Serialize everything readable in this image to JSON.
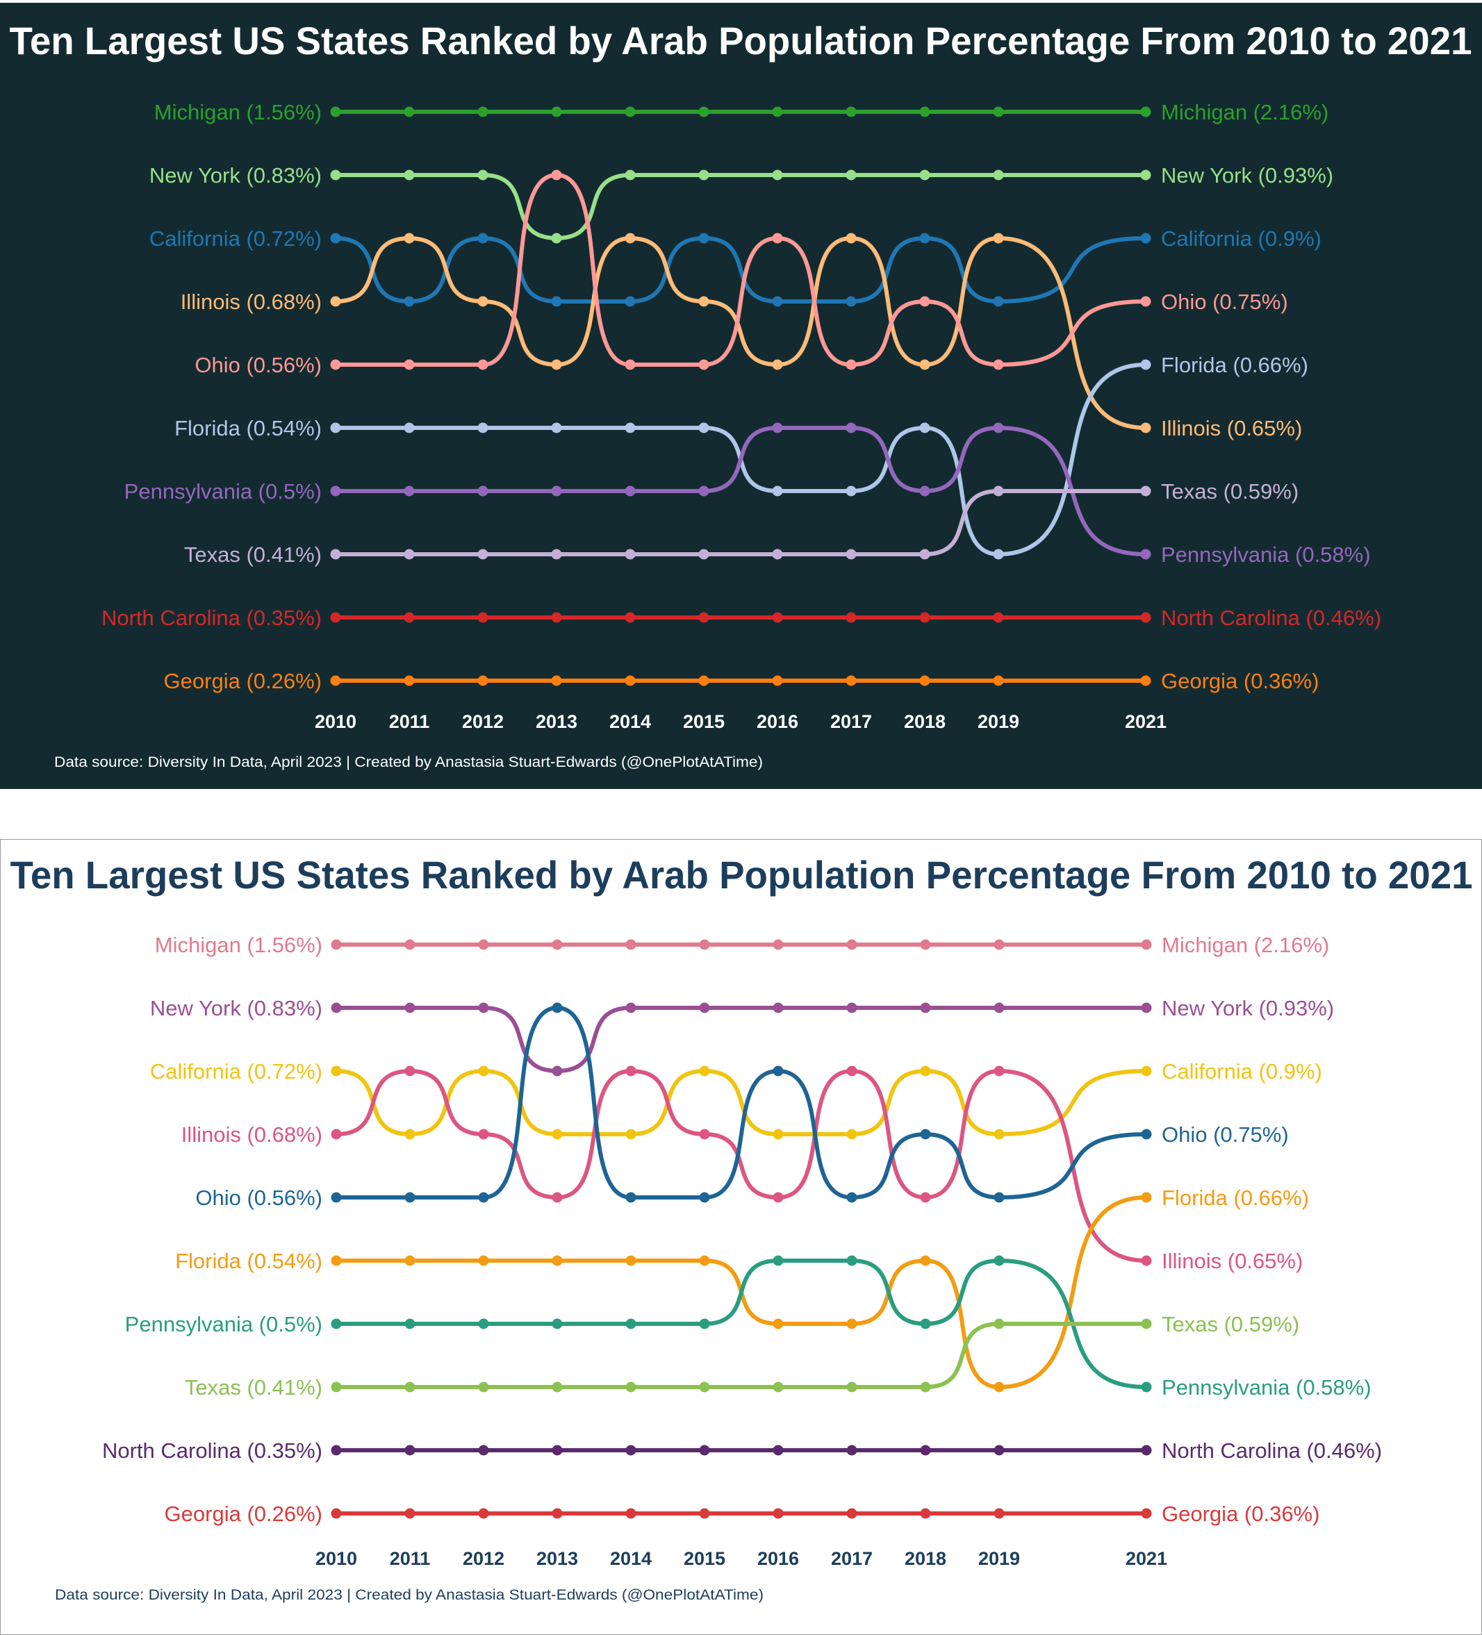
{
  "chart_data": [
    {
      "type": "line",
      "subtype": "bump",
      "theme": "dark",
      "title": "Ten Largest US States Ranked by Arab Population Percentage From 2010 to 2021",
      "footer": "Data source: Diversity In Data, April 2023 | Created by Anastasia Stuart-Edwards (@OnePlotAtATime)",
      "x": [
        2010,
        2011,
        2012,
        2013,
        2014,
        2015,
        2016,
        2017,
        2018,
        2019,
        2021
      ],
      "x_tick_labels": [
        "2010",
        "2011",
        "2012",
        "2013",
        "2014",
        "2015",
        "2016",
        "2017",
        "2018",
        "2019",
        "2021"
      ],
      "y_axis": "rank (1 = top)",
      "ylim": [
        1,
        10
      ],
      "colors": {
        "background": "#132b30",
        "title": "#ffffff",
        "axis_text": "#ffffff",
        "footer": "#ffffff"
      },
      "series": [
        {
          "name": "Michigan",
          "start_label": "Michigan (1.56%)",
          "end_label": "Michigan (2.16%)",
          "pct_2010": 1.56,
          "pct_2021": 2.16,
          "color": "#2ca02c",
          "ranks": [
            1,
            1,
            1,
            1,
            1,
            1,
            1,
            1,
            1,
            1,
            1
          ]
        },
        {
          "name": "New York",
          "start_label": "New York (0.83%)",
          "end_label": "New York (0.93%)",
          "pct_2010": 0.83,
          "pct_2021": 0.93,
          "color": "#98df8a",
          "ranks": [
            2,
            2,
            2,
            3,
            2,
            2,
            2,
            2,
            2,
            2,
            2
          ]
        },
        {
          "name": "California",
          "start_label": "California (0.72%)",
          "end_label": "California (0.9%)",
          "pct_2010": 0.72,
          "pct_2021": 0.9,
          "color": "#1f77b4",
          "ranks": [
            3,
            4,
            3,
            4,
            4,
            3,
            4,
            4,
            3,
            4,
            3
          ]
        },
        {
          "name": "Illinois",
          "start_label": "Illinois (0.68%)",
          "end_label": "Illinois (0.65%)",
          "pct_2010": 0.68,
          "pct_2021": 0.65,
          "color": "#ffbb78",
          "ranks": [
            4,
            3,
            4,
            5,
            3,
            4,
            5,
            3,
            5,
            3,
            6
          ]
        },
        {
          "name": "Ohio",
          "start_label": "Ohio (0.56%)",
          "end_label": "Ohio (0.75%)",
          "pct_2010": 0.56,
          "pct_2021": 0.75,
          "color": "#ff9896",
          "ranks": [
            5,
            5,
            5,
            2,
            5,
            5,
            3,
            5,
            4,
            5,
            4
          ]
        },
        {
          "name": "Florida",
          "start_label": "Florida (0.54%)",
          "end_label": "Florida (0.66%)",
          "pct_2010": 0.54,
          "pct_2021": 0.66,
          "color": "#aec7e8",
          "ranks": [
            6,
            6,
            6,
            6,
            6,
            6,
            7,
            7,
            6,
            8,
            5
          ]
        },
        {
          "name": "Pennsylvania",
          "start_label": "Pennsylvania (0.5%)",
          "end_label": "Pennsylvania (0.58%)",
          "pct_2010": 0.5,
          "pct_2021": 0.58,
          "color": "#9467bd",
          "ranks": [
            7,
            7,
            7,
            7,
            7,
            7,
            6,
            6,
            7,
            6,
            8
          ]
        },
        {
          "name": "Texas",
          "start_label": "Texas (0.41%)",
          "end_label": "Texas (0.59%)",
          "pct_2010": 0.41,
          "pct_2021": 0.59,
          "color": "#c5b0d5",
          "ranks": [
            8,
            8,
            8,
            8,
            8,
            8,
            8,
            8,
            8,
            7,
            7
          ]
        },
        {
          "name": "North Carolina",
          "start_label": "North Carolina (0.35%)",
          "end_label": "North Carolina (0.46%)",
          "pct_2010": 0.35,
          "pct_2021": 0.46,
          "color": "#d62728",
          "ranks": [
            9,
            9,
            9,
            9,
            9,
            9,
            9,
            9,
            9,
            9,
            9
          ]
        },
        {
          "name": "Georgia",
          "start_label": "Georgia (0.26%)",
          "end_label": "Georgia (0.36%)",
          "pct_2010": 0.26,
          "pct_2021": 0.36,
          "color": "#ff7f0e",
          "ranks": [
            10,
            10,
            10,
            10,
            10,
            10,
            10,
            10,
            10,
            10,
            10
          ]
        }
      ]
    },
    {
      "type": "line",
      "subtype": "bump",
      "theme": "light",
      "title": "Ten Largest US States Ranked by Arab Population Percentage From 2010 to 2021",
      "footer": "Data source: Diversity In Data, April 2023 | Created by Anastasia Stuart-Edwards (@OnePlotAtATime)",
      "x": [
        2010,
        2011,
        2012,
        2013,
        2014,
        2015,
        2016,
        2017,
        2018,
        2019,
        2021
      ],
      "x_tick_labels": [
        "2010",
        "2011",
        "2012",
        "2013",
        "2014",
        "2015",
        "2016",
        "2017",
        "2018",
        "2019",
        "2021"
      ],
      "y_axis": "rank (1 = top)",
      "ylim": [
        1,
        10
      ],
      "colors": {
        "background": "#ffffff",
        "title": "#1d3d5c",
        "axis_text": "#1d3d5c",
        "footer": "#1d3d5c"
      },
      "series": [
        {
          "name": "Michigan",
          "start_label": "Michigan (1.56%)",
          "end_label": "Michigan (2.16%)",
          "pct_2010": 1.56,
          "pct_2021": 2.16,
          "color": "#e27a8d",
          "ranks": [
            1,
            1,
            1,
            1,
            1,
            1,
            1,
            1,
            1,
            1,
            1
          ]
        },
        {
          "name": "New York",
          "start_label": "New York (0.83%)",
          "end_label": "New York (0.93%)",
          "pct_2010": 0.83,
          "pct_2021": 0.93,
          "color": "#9a4f95",
          "ranks": [
            2,
            2,
            2,
            3,
            2,
            2,
            2,
            2,
            2,
            2,
            2
          ]
        },
        {
          "name": "California",
          "start_label": "California (0.72%)",
          "end_label": "California (0.9%)",
          "pct_2010": 0.72,
          "pct_2021": 0.9,
          "color": "#f1c40f",
          "ranks": [
            3,
            4,
            3,
            4,
            4,
            3,
            4,
            4,
            3,
            4,
            3
          ]
        },
        {
          "name": "Illinois",
          "start_label": "Illinois (0.68%)",
          "end_label": "Illinois (0.65%)",
          "pct_2010": 0.68,
          "pct_2021": 0.65,
          "color": "#dc5680",
          "ranks": [
            4,
            3,
            4,
            5,
            3,
            4,
            5,
            3,
            5,
            3,
            6
          ]
        },
        {
          "name": "Ohio",
          "start_label": "Ohio (0.56%)",
          "end_label": "Ohio (0.75%)",
          "pct_2010": 0.56,
          "pct_2021": 0.75,
          "color": "#1e6494",
          "ranks": [
            5,
            5,
            5,
            2,
            5,
            5,
            3,
            5,
            4,
            5,
            4
          ]
        },
        {
          "name": "Florida",
          "start_label": "Florida (0.54%)",
          "end_label": "Florida (0.66%)",
          "pct_2010": 0.54,
          "pct_2021": 0.66,
          "color": "#f39c12",
          "ranks": [
            6,
            6,
            6,
            6,
            6,
            6,
            7,
            7,
            6,
            8,
            5
          ]
        },
        {
          "name": "Pennsylvania",
          "start_label": "Pennsylvania (0.5%)",
          "end_label": "Pennsylvania (0.58%)",
          "pct_2010": 0.5,
          "pct_2021": 0.58,
          "color": "#2a9d80",
          "ranks": [
            7,
            7,
            7,
            7,
            7,
            7,
            6,
            6,
            7,
            6,
            8
          ]
        },
        {
          "name": "Texas",
          "start_label": "Texas (0.41%)",
          "end_label": "Texas (0.59%)",
          "pct_2010": 0.41,
          "pct_2021": 0.59,
          "color": "#8cc152",
          "ranks": [
            8,
            8,
            8,
            8,
            8,
            8,
            8,
            8,
            8,
            7,
            7
          ]
        },
        {
          "name": "North Carolina",
          "start_label": "North Carolina (0.35%)",
          "end_label": "North Carolina (0.46%)",
          "pct_2010": 0.35,
          "pct_2021": 0.46,
          "color": "#5a2a6c",
          "ranks": [
            9,
            9,
            9,
            9,
            9,
            9,
            9,
            9,
            9,
            9,
            9
          ]
        },
        {
          "name": "Georgia",
          "start_label": "Georgia (0.26%)",
          "end_label": "Georgia (0.36%)",
          "pct_2010": 0.26,
          "pct_2021": 0.36,
          "color": "#d83a3a",
          "ranks": [
            10,
            10,
            10,
            10,
            10,
            10,
            10,
            10,
            10,
            10,
            10
          ]
        }
      ]
    }
  ]
}
